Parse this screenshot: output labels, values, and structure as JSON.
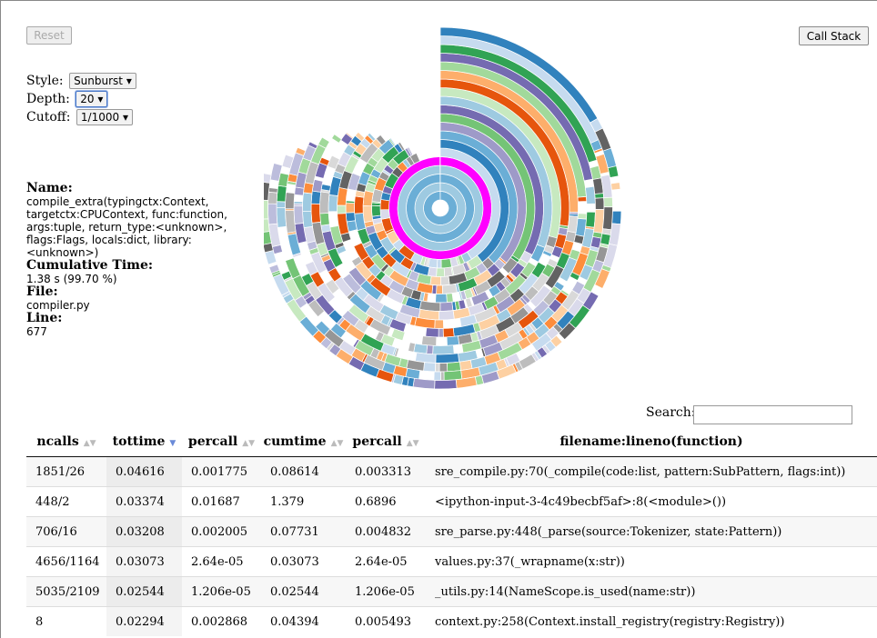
{
  "toolbar": {
    "reset_label": "Reset",
    "call_stack_label": "Call Stack"
  },
  "controls": {
    "style_label": "Style:",
    "style_value": "Sunburst ▾",
    "depth_label": "Depth:",
    "depth_value": "20 ▾",
    "cutoff_label": "Cutoff:",
    "cutoff_value": "1/1000 ▾"
  },
  "info": {
    "name_heading": "Name:",
    "name_value": "compile_extra(typingctx:Context, targetctx:CPUContext, func:function, args:tuple, return_type:<unknown>, flags:Flags, locals:dict, library:<unknown>)",
    "time_heading": "Cumulative Time:",
    "time_value": "1.38 s (99.70 %)",
    "file_heading": "File:",
    "file_value": "compiler.py",
    "line_heading": "Line:",
    "line_value": "677"
  },
  "search": {
    "label": "Search:",
    "value": "",
    "placeholder": ""
  },
  "table": {
    "headers": [
      "ncalls",
      "tottime",
      "percall",
      "cumtime",
      "percall",
      "filename:lineno(function)"
    ],
    "sorted_column": "tottime",
    "rows": [
      [
        "1851/26",
        "0.04616",
        "0.001775",
        "0.08614",
        "0.003313",
        "sre_compile.py:70(_compile(code:list, pattern:SubPattern, flags:int))"
      ],
      [
        "448/2",
        "0.03374",
        "0.01687",
        "1.379",
        "0.6896",
        "<ipython-input-3-4c49becbf5af>:8(<module>())"
      ],
      [
        "706/16",
        "0.03208",
        "0.002005",
        "0.07731",
        "0.004832",
        "sre_parse.py:448(_parse(source:Tokenizer, state:Pattern))"
      ],
      [
        "4656/1164",
        "0.03073",
        "2.64e-05",
        "0.03073",
        "2.64e-05",
        "values.py:37(_wrapname(x:str))"
      ],
      [
        "5035/2109",
        "0.02544",
        "1.206e-05",
        "0.02544",
        "1.206e-05",
        "_utils.py:14(NameScope.is_used(name:str))"
      ],
      [
        "8",
        "0.02294",
        "0.002868",
        "0.04394",
        "0.005493",
        "context.py:258(Context.install_registry(registry:Registry))"
      ]
    ]
  },
  "sunburst_colors": [
    "#3182bd",
    "#6baed6",
    "#9ecae1",
    "#c6dbef",
    "#e6550d",
    "#fd8d3c",
    "#fdae6b",
    "#fdd0a2",
    "#31a354",
    "#74c476",
    "#a1d99b",
    "#c7e9c0",
    "#756bb1",
    "#9e9ac8",
    "#bcbddc",
    "#dadaeb",
    "#636363",
    "#969696",
    "#bdbdbd",
    "#d9d9d9"
  ],
  "sunburst_highlight": "#ff00ff"
}
